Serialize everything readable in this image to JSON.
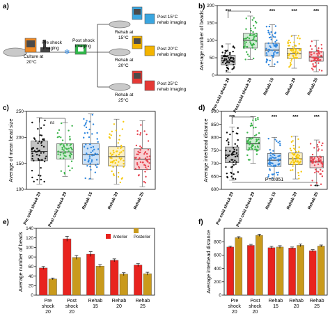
{
  "panel_letters": {
    "a": "a)",
    "b": "b)",
    "c": "c)",
    "d": "d)",
    "e": "e)",
    "f": "f)"
  },
  "schematic": {
    "culture_label": "Culture at 20°C",
    "pre_label": "Pre shock imaging",
    "post_label": "Post shock imaging",
    "branches": [
      {
        "temp": "15°C",
        "rehab": "Rehab at 15°C",
        "imaging": "Post 15°C rehab imaging",
        "color": "#3aa6e0"
      },
      {
        "temp": "20°C",
        "rehab": "Rehab at 20°C",
        "imaging": "Post 20°C rehab imaging",
        "color": "#f4b400"
      },
      {
        "temp": "25°C",
        "rehab": "Rehab at 25°C",
        "imaging": "Post 25°C rehab imaging",
        "color": "#e53935"
      }
    ]
  },
  "colors": {
    "pre_cold": "#111111",
    "post_cold": "#3cb44b",
    "rehab15": "#2e86de",
    "rehab20": "#f6c90e",
    "rehab25": "#e8434f",
    "anterior": "#e8231e",
    "posterior": "#c99a1c"
  },
  "chart_data": [
    {
      "id": "b",
      "type": "box",
      "ylabel": "Average number of beads",
      "categories": [
        "Pre cold shock 20",
        "Post cold shock 20",
        "Rehab 15",
        "Rehab 20",
        "Rehab 25"
      ],
      "yticks": [
        0,
        50,
        100,
        150,
        200
      ],
      "ylim": [
        0,
        200
      ],
      "boxes": [
        {
          "q1": 30,
          "median": 42,
          "q3": 57,
          "low": 8,
          "high": 90
        },
        {
          "q1": 78,
          "median": 100,
          "q3": 120,
          "low": 45,
          "high": 170
        },
        {
          "q1": 55,
          "median": 72,
          "q3": 92,
          "low": 25,
          "high": 145
        },
        {
          "q1": 48,
          "median": 62,
          "q3": 77,
          "low": 20,
          "high": 115
        },
        {
          "q1": 40,
          "median": 52,
          "q3": 68,
          "low": 10,
          "high": 100
        }
      ],
      "significance": [
        "***",
        "***",
        "***",
        "***"
      ]
    },
    {
      "id": "c",
      "type": "box",
      "ylabel": "Average of mean bead size",
      "categories": [
        "Pre cold shock 20",
        "Post cold shock 20",
        "Rehab 15",
        "Rehab 20",
        "Rehab 25"
      ],
      "yticks": [
        100,
        150,
        200,
        250
      ],
      "ylim": [
        100,
        250
      ],
      "boxes": [
        {
          "q1": 155,
          "median": 173,
          "q3": 193,
          "low": 110,
          "high": 238
        },
        {
          "q1": 158,
          "median": 172,
          "q3": 188,
          "low": 125,
          "high": 228
        },
        {
          "q1": 148,
          "median": 167,
          "q3": 188,
          "low": 120,
          "high": 245
        },
        {
          "q1": 145,
          "median": 163,
          "q3": 182,
          "low": 110,
          "high": 235
        },
        {
          "q1": 138,
          "median": 158,
          "q3": 178,
          "low": 105,
          "high": 232
        }
      ],
      "significance": [
        "ns"
      ]
    },
    {
      "id": "d",
      "type": "box",
      "ylabel": "Average interbead distance",
      "categories": [
        "Pre cold shock 20",
        "Post cold shock 20",
        "Rehab 15",
        "Rehab 20",
        "Rehab 25"
      ],
      "yticks": [
        600,
        650,
        700,
        750,
        800,
        850,
        900
      ],
      "ylim": [
        600,
        900
      ],
      "boxes": [
        {
          "q1": 703,
          "median": 733,
          "q3": 763,
          "low": 635,
          "high": 840
        },
        {
          "q1": 752,
          "median": 775,
          "q3": 800,
          "low": 700,
          "high": 880
        },
        {
          "q1": 688,
          "median": 712,
          "q3": 738,
          "low": 640,
          "high": 800
        },
        {
          "q1": 695,
          "median": 718,
          "q3": 740,
          "low": 640,
          "high": 805
        },
        {
          "q1": 683,
          "median": 705,
          "q3": 727,
          "low": 615,
          "high": 790
        }
      ],
      "significance": [
        "***",
        "***",
        "***",
        "***"
      ],
      "annotation": "P=0.051",
      "bottom_sig": "**"
    },
    {
      "id": "e",
      "type": "bar",
      "ylabel": "Average number of beads",
      "categories": [
        "Pre shock 20",
        "Post shock 20",
        "Rehab 15",
        "Rehab 20",
        "Rehab 25"
      ],
      "yticks": [
        0,
        20,
        40,
        60,
        80,
        100,
        120,
        140
      ],
      "ylim": [
        0,
        140
      ],
      "legend": [
        "Anterior",
        "Posterior"
      ],
      "series": [
        {
          "name": "Anterior",
          "values": [
            57,
            118,
            86,
            73,
            63
          ],
          "err": [
            3,
            5,
            5,
            3,
            3
          ]
        },
        {
          "name": "Posterior",
          "values": [
            34,
            79,
            61,
            44,
            45
          ],
          "err": [
            2,
            4,
            3,
            3,
            3
          ]
        }
      ]
    },
    {
      "id": "f",
      "type": "bar",
      "ylabel": "Average interbead distance",
      "categories": [
        "Pre shock 20",
        "Post shock 20",
        "Rehab 15",
        "Rehab 20",
        "Rehab 25"
      ],
      "yticks": [
        0,
        200,
        400,
        600,
        800
      ],
      "ylim": [
        0,
        1000
      ],
      "series": [
        {
          "name": "Anterior",
          "values": [
            720,
            745,
            710,
            705,
            665
          ],
          "err": [
            15,
            15,
            20,
            15,
            15
          ]
        },
        {
          "name": "Posterior",
          "values": [
            860,
            895,
            720,
            745,
            735
          ],
          "err": [
            15,
            15,
            20,
            20,
            15
          ]
        }
      ]
    }
  ]
}
